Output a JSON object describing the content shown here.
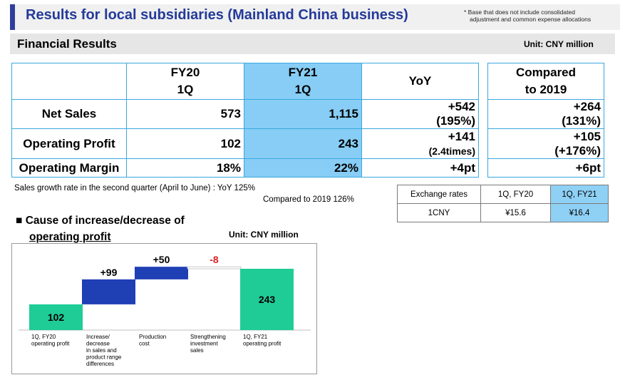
{
  "header": {
    "title": "Results for local subsidiaries (Mainland China business)",
    "note_line1": "* Base that does not include consolidated",
    "note_line2": "adjustment and common expense allocations"
  },
  "section": {
    "title": "Financial Results",
    "unit": "Unit: CNY million"
  },
  "financial_table": {
    "col_fy20_line1": "FY20",
    "col_fy20_line2": "1Q",
    "col_fy21_line1": "FY21",
    "col_fy21_line2": "1Q",
    "col_yoy": "YoY",
    "col_cmp_line1": "Compared",
    "col_cmp_line2": "to 2019",
    "rows": [
      {
        "label": "Net Sales",
        "fy20": "573",
        "fy21": "1,115",
        "yoy1": "+542",
        "yoy2": "(195%)",
        "cmp1": "+264",
        "cmp2": "(131%)"
      },
      {
        "label": "Operating Profit",
        "fy20": "102",
        "fy21": "243",
        "yoy1": "+141",
        "yoy2": "(2.4times)",
        "cmp1": "+105",
        "cmp2": "(+176%)"
      },
      {
        "label": "Operating Margin",
        "fy20": "18%",
        "fy21": "22%",
        "yoy1": "+4pt",
        "cmp1": "+6pt"
      }
    ]
  },
  "growth_note": {
    "line1": "Sales growth rate in the second quarter (April to June) : YoY   125%",
    "line2": "Compared to 2019 126%"
  },
  "exchange": {
    "header_label": "Exchange rates",
    "header_fy20": "1Q, FY20",
    "header_fy21": "1Q, FY21",
    "row_label": "1CNY",
    "fy20": "¥15.6",
    "fy21": "¥16.4"
  },
  "cause": {
    "title_line1": "Cause of increase/decrease of",
    "title_line2": "operating profit",
    "unit": "Unit: CNY million"
  },
  "chart_data": {
    "type": "bar",
    "subtype": "waterfall",
    "categories": [
      [
        "1Q, FY20",
        "operating profit"
      ],
      [
        "Increase/",
        "decrease",
        "in sales and",
        "product range",
        "differences"
      ],
      [
        "Production",
        "cost"
      ],
      [
        "Strengthening",
        "investment",
        "sales"
      ],
      [
        "1Q, FY21",
        "operating profit"
      ]
    ],
    "values": [
      102,
      99,
      50,
      -8,
      243
    ],
    "labels": [
      "102",
      "+99",
      "+50",
      "-8",
      "243"
    ],
    "kinds": [
      "total",
      "delta",
      "delta",
      "delta",
      "total"
    ],
    "colors": {
      "total": "#1fcc96",
      "up": "#1f3fb5",
      "down": "#ffffff",
      "neg_label": "#e02020"
    },
    "ylim": [
      0,
      260
    ]
  }
}
